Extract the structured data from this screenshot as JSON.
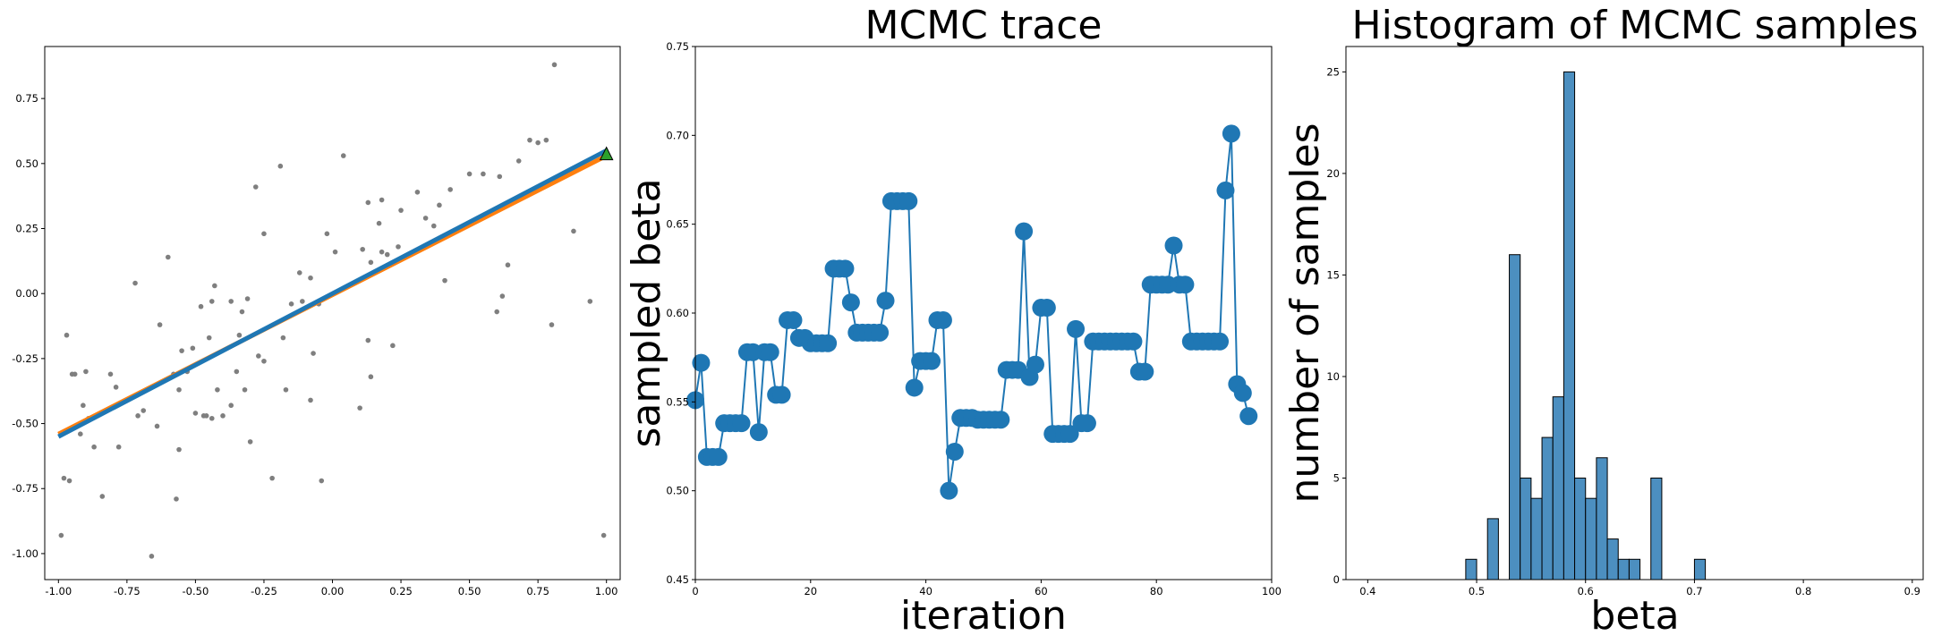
{
  "chart_data": [
    {
      "type": "scatter",
      "title": "",
      "xlabel": "",
      "ylabel": "",
      "xlim": [
        -1.05,
        1.05
      ],
      "ylim": [
        -1.1,
        0.95
      ],
      "xticks": [
        "-1.00",
        "-0.75",
        "-0.50",
        "-0.25",
        "0.00",
        "0.25",
        "0.50",
        "0.75",
        "1.00"
      ],
      "yticks": [
        "-1.00",
        "-0.75",
        "-0.50",
        "-0.25",
        "0.00",
        "0.25",
        "0.50",
        "0.75"
      ],
      "grid": false,
      "colors": {
        "points": "#7f7f7f",
        "fit_line": "#1f77b4",
        "true_line": "#ff7f0e",
        "marker": "#2ca02c"
      },
      "points": {
        "x": [
          -0.98,
          -0.97,
          -0.96,
          -0.94,
          -0.91,
          -0.9,
          -0.89,
          -0.87,
          -0.84,
          -0.81,
          -0.79,
          -0.78,
          -0.72,
          -0.71,
          -0.69,
          -0.66,
          -0.64,
          -0.63,
          -0.6,
          -0.58,
          -0.57,
          -0.56,
          -0.53,
          -0.51,
          -0.5,
          -0.48,
          -0.47,
          -0.46,
          -0.45,
          -0.44,
          -0.44,
          -0.43,
          -0.42,
          -0.4,
          -0.37,
          -0.35,
          -0.34,
          -0.33,
          -0.32,
          -0.31,
          -0.3,
          -0.28,
          -0.27,
          -0.25,
          -0.22,
          -0.19,
          -0.18,
          -0.17,
          -0.15,
          -0.12,
          -0.11,
          -0.08,
          -0.07,
          -0.05,
          -0.04,
          -0.02,
          0.01,
          0.04,
          0.1,
          0.11,
          0.13,
          0.13,
          0.14,
          0.17,
          0.18,
          0.2,
          0.22,
          0.24,
          0.25,
          0.31,
          0.34,
          0.37,
          0.39,
          0.41,
          0.43,
          0.5,
          0.55,
          0.6,
          0.62,
          0.68,
          0.72,
          0.75,
          0.78,
          0.8,
          0.81,
          0.88,
          0.94,
          0.99,
          -0.99,
          -0.92,
          -0.25,
          -0.37,
          -0.56,
          -0.95,
          -0.08,
          0.61,
          0.64,
          0.14,
          0.18,
          -0.55
        ],
        "y": [
          -0.71,
          -0.16,
          -0.72,
          -0.31,
          -0.43,
          -0.3,
          -0.48,
          -0.59,
          -0.78,
          -0.31,
          -0.36,
          -0.59,
          0.04,
          -0.47,
          -0.45,
          -1.01,
          -0.51,
          -0.12,
          0.14,
          -0.31,
          -0.79,
          -0.6,
          -0.3,
          -0.21,
          -0.46,
          -0.05,
          -0.47,
          -0.47,
          -0.17,
          -0.03,
          -0.48,
          0.03,
          -0.37,
          -0.47,
          -0.43,
          -0.3,
          -0.16,
          -0.07,
          -0.37,
          -0.02,
          -0.57,
          0.41,
          -0.24,
          0.23,
          -0.71,
          0.49,
          -0.17,
          -0.37,
          -0.04,
          0.08,
          -0.03,
          -0.41,
          -0.23,
          -0.04,
          -0.72,
          0.23,
          0.16,
          0.53,
          -0.44,
          0.17,
          -0.18,
          0.35,
          0.12,
          0.27,
          0.16,
          0.15,
          -0.2,
          0.18,
          0.32,
          0.39,
          0.29,
          0.26,
          0.34,
          0.05,
          0.4,
          0.46,
          0.46,
          -0.07,
          -0.01,
          0.51,
          0.59,
          0.58,
          0.59,
          -0.12,
          0.88,
          0.24,
          -0.03,
          -0.93,
          -0.93,
          -0.54,
          -0.26,
          -0.03,
          -0.37,
          -0.31,
          0.06,
          0.45,
          0.11,
          -0.32,
          0.36,
          -0.22
        ]
      },
      "fit_line": {
        "x": [
          -1.0,
          1.0
        ],
        "y": [
          -0.55,
          0.55
        ]
      },
      "true_line": {
        "x": [
          -1.0,
          1.0
        ],
        "y": [
          -0.54,
          0.53
        ]
      },
      "marker": {
        "x": 1.0,
        "y": 0.535,
        "shape": "triangle"
      }
    },
    {
      "type": "line",
      "title": "MCMC trace",
      "xlabel": "iteration",
      "ylabel": "sampled beta",
      "xlim": [
        0,
        100
      ],
      "ylim": [
        0.45,
        0.75
      ],
      "xticks": [
        "0",
        "20",
        "40",
        "60",
        "80",
        "100"
      ],
      "yticks": [
        "0.45",
        "0.50",
        "0.55",
        "0.60",
        "0.65",
        "0.70",
        "0.75"
      ],
      "grid": false,
      "colors": {
        "line": "#1f77b4"
      },
      "series": [
        {
          "values": [
            0.551,
            0.572,
            0.519,
            0.519,
            0.519,
            0.538,
            0.538,
            0.538,
            0.538,
            0.578,
            0.578,
            0.533,
            0.578,
            0.578,
            0.554,
            0.554,
            0.596,
            0.596,
            0.586,
            0.586,
            0.583,
            0.583,
            0.583,
            0.583,
            0.625,
            0.625,
            0.625,
            0.606,
            0.589,
            0.589,
            0.589,
            0.589,
            0.589,
            0.607,
            0.663,
            0.663,
            0.663,
            0.663,
            0.558,
            0.573,
            0.573,
            0.573,
            0.596,
            0.596,
            0.5,
            0.522,
            0.541,
            0.541,
            0.541,
            0.54,
            0.54,
            0.54,
            0.54,
            0.54,
            0.568,
            0.568,
            0.568,
            0.646,
            0.564,
            0.571,
            0.603,
            0.603,
            0.532,
            0.532,
            0.532,
            0.532,
            0.591,
            0.538,
            0.538,
            0.584,
            0.584,
            0.584,
            0.584,
            0.584,
            0.584,
            0.584,
            0.584,
            0.567,
            0.567,
            0.616,
            0.616,
            0.616,
            0.616,
            0.638,
            0.616,
            0.616,
            0.584,
            0.584,
            0.584,
            0.584,
            0.584,
            0.584,
            0.669,
            0.701,
            0.56,
            0.555,
            0.542
          ]
        }
      ]
    },
    {
      "type": "bar",
      "title": "Histogram of MCMC samples",
      "xlabel": "beta",
      "ylabel": "number of samples",
      "xlim": [
        0.38,
        0.91
      ],
      "ylim": [
        0,
        26.25
      ],
      "xticks": [
        "0.4",
        "0.5",
        "0.6",
        "0.7",
        "0.8",
        "0.9"
      ],
      "yticks": [
        "0",
        "5",
        "10",
        "15",
        "20",
        "25"
      ],
      "grid": false,
      "colors": {
        "bar": "#4c8fc0",
        "edge": "#000000"
      },
      "bin_width": 0.01,
      "bins": [
        {
          "x": 0.49,
          "count": 1
        },
        {
          "x": 0.51,
          "count": 3
        },
        {
          "x": 0.53,
          "count": 16
        },
        {
          "x": 0.54,
          "count": 5
        },
        {
          "x": 0.55,
          "count": 4
        },
        {
          "x": 0.56,
          "count": 7
        },
        {
          "x": 0.57,
          "count": 9
        },
        {
          "x": 0.58,
          "count": 25
        },
        {
          "x": 0.59,
          "count": 5
        },
        {
          "x": 0.6,
          "count": 4
        },
        {
          "x": 0.61,
          "count": 6
        },
        {
          "x": 0.62,
          "count": 2
        },
        {
          "x": 0.63,
          "count": 1
        },
        {
          "x": 0.64,
          "count": 1
        },
        {
          "x": 0.66,
          "count": 5
        },
        {
          "x": 0.7,
          "count": 1
        }
      ]
    }
  ]
}
